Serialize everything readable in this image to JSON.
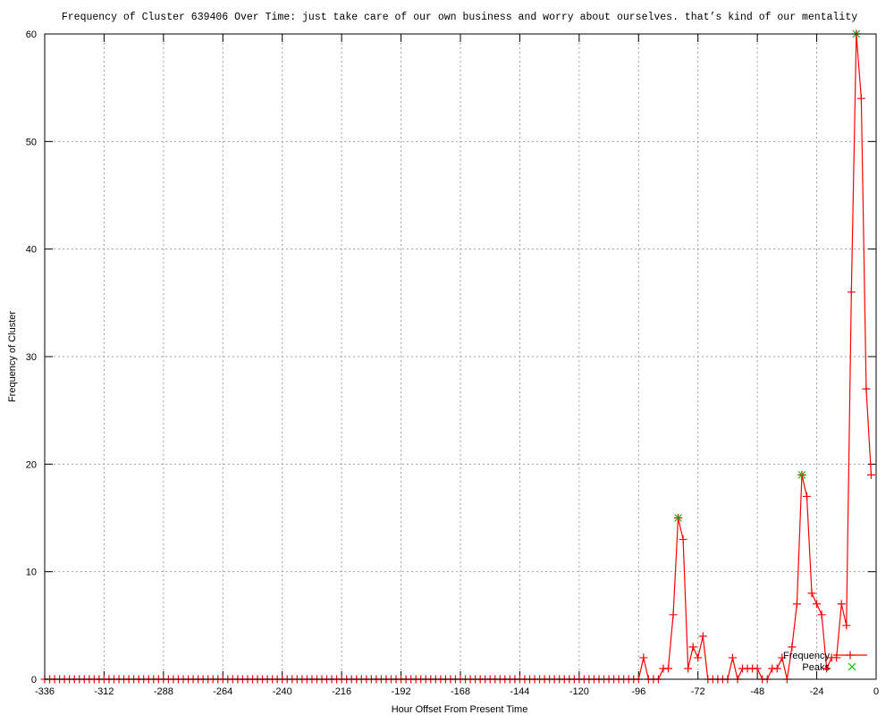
{
  "chart_data": {
    "type": "line",
    "title": "Frequency of Cluster 639406 Over Time: just take care of our own business and worry about ourselves. that’s kind of our mentality",
    "xlabel": "Hour Offset From Present Time",
    "ylabel": "Frequency of Cluster",
    "xlim": [
      -336,
      0
    ],
    "ylim": [
      0,
      60
    ],
    "xticks": [
      -336,
      -312,
      -288,
      -264,
      -240,
      -216,
      -192,
      -168,
      -144,
      -120,
      -96,
      -72,
      -48,
      -24,
      0
    ],
    "yticks": [
      0,
      10,
      20,
      30,
      40,
      50,
      60
    ],
    "grid": true,
    "legend_position": "bottom-right",
    "series": [
      {
        "name": "Frequency",
        "color": "#ff0000",
        "marker": "plus",
        "x": [
          -336,
          -334,
          -332,
          -330,
          -328,
          -326,
          -324,
          -322,
          -320,
          -318,
          -316,
          -314,
          -312,
          -310,
          -308,
          -306,
          -304,
          -302,
          -300,
          -298,
          -296,
          -294,
          -292,
          -290,
          -288,
          -286,
          -284,
          -282,
          -280,
          -278,
          -276,
          -274,
          -272,
          -270,
          -268,
          -266,
          -264,
          -262,
          -260,
          -258,
          -256,
          -254,
          -252,
          -250,
          -248,
          -246,
          -244,
          -242,
          -240,
          -238,
          -236,
          -234,
          -232,
          -230,
          -228,
          -226,
          -224,
          -222,
          -220,
          -218,
          -216,
          -214,
          -212,
          -210,
          -208,
          -206,
          -204,
          -202,
          -200,
          -198,
          -196,
          -194,
          -192,
          -190,
          -188,
          -186,
          -184,
          -182,
          -180,
          -178,
          -176,
          -174,
          -172,
          -170,
          -168,
          -166,
          -164,
          -162,
          -160,
          -158,
          -156,
          -154,
          -152,
          -150,
          -148,
          -146,
          -144,
          -142,
          -140,
          -138,
          -136,
          -134,
          -132,
          -130,
          -128,
          -126,
          -124,
          -122,
          -120,
          -118,
          -116,
          -114,
          -112,
          -110,
          -108,
          -106,
          -104,
          -102,
          -100,
          -98,
          -96,
          -94,
          -92,
          -90,
          -88,
          -86,
          -84,
          -82,
          -80,
          -78,
          -76,
          -74,
          -72,
          -70,
          -68,
          -66,
          -64,
          -62,
          -60,
          -58,
          -56,
          -54,
          -52,
          -50,
          -48,
          -46,
          -44,
          -42,
          -40,
          -38,
          -36,
          -34,
          -32,
          -30,
          -28,
          -26,
          -24,
          -22,
          -20,
          -18,
          -16,
          -14,
          -12,
          -10,
          -8,
          -6,
          -4,
          -2
        ],
        "y": [
          0,
          0,
          0,
          0,
          0,
          0,
          0,
          0,
          0,
          0,
          0,
          0,
          0,
          0,
          0,
          0,
          0,
          0,
          0,
          0,
          0,
          0,
          0,
          0,
          0,
          0,
          0,
          0,
          0,
          0,
          0,
          0,
          0,
          0,
          0,
          0,
          0,
          0,
          0,
          0,
          0,
          0,
          0,
          0,
          0,
          0,
          0,
          0,
          0,
          0,
          0,
          0,
          0,
          0,
          0,
          0,
          0,
          0,
          0,
          0,
          0,
          0,
          0,
          0,
          0,
          0,
          0,
          0,
          0,
          0,
          0,
          0,
          0,
          0,
          0,
          0,
          0,
          0,
          0,
          0,
          0,
          0,
          0,
          0,
          0,
          0,
          0,
          0,
          0,
          0,
          0,
          0,
          0,
          0,
          0,
          0,
          0,
          0,
          0,
          0,
          0,
          0,
          0,
          0,
          0,
          0,
          0,
          0,
          0,
          0,
          0,
          0,
          0,
          0,
          0,
          0,
          0,
          0,
          0,
          0,
          0,
          2,
          0,
          0,
          0,
          1,
          1,
          6,
          15,
          13,
          1,
          3,
          2,
          4,
          0,
          0,
          0,
          0,
          0,
          2,
          0,
          1,
          1,
          1,
          1,
          0,
          0,
          1,
          1,
          2,
          0,
          3,
          7,
          19,
          17,
          8,
          7,
          6,
          1,
          2,
          2,
          7,
          5,
          36,
          60,
          54,
          27,
          19
        ]
      },
      {
        "name": "Peaks",
        "color": "#00c000",
        "marker": "cross",
        "x": [
          -80,
          -30,
          -8
        ],
        "y": [
          15,
          19,
          60
        ]
      }
    ]
  }
}
